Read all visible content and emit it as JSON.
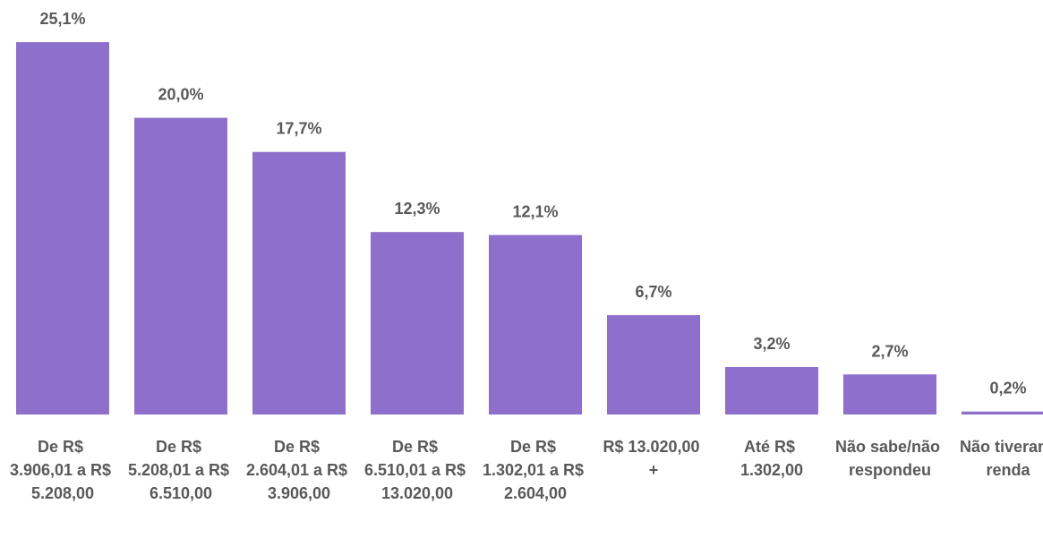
{
  "chart_data": {
    "type": "bar",
    "categories": [
      "De R$ 3.906,01 a R$ 5.208,00",
      "De R$ 5.208,01 a R$ 6.510,00",
      "De R$ 2.604,01 a R$ 3.906,00",
      "De R$ 6.510,01 a R$ 13.020,00",
      "De R$ 1.302,01 a R$ 2.604,00",
      "R$ 13.020,00 +",
      "Até R$ 1.302,00",
      "Não sabe/não respondeu",
      "Não tiveram renda"
    ],
    "values": [
      25.1,
      20.0,
      17.7,
      12.3,
      12.1,
      6.7,
      3.2,
      2.7,
      0.2
    ],
    "value_labels": [
      "25,1%",
      "20,0%",
      "17,7%",
      "12,3%",
      "12,1%",
      "6,7%",
      "3,2%",
      "2,7%",
      "0,2%"
    ],
    "color": "#8e6fcc"
  }
}
